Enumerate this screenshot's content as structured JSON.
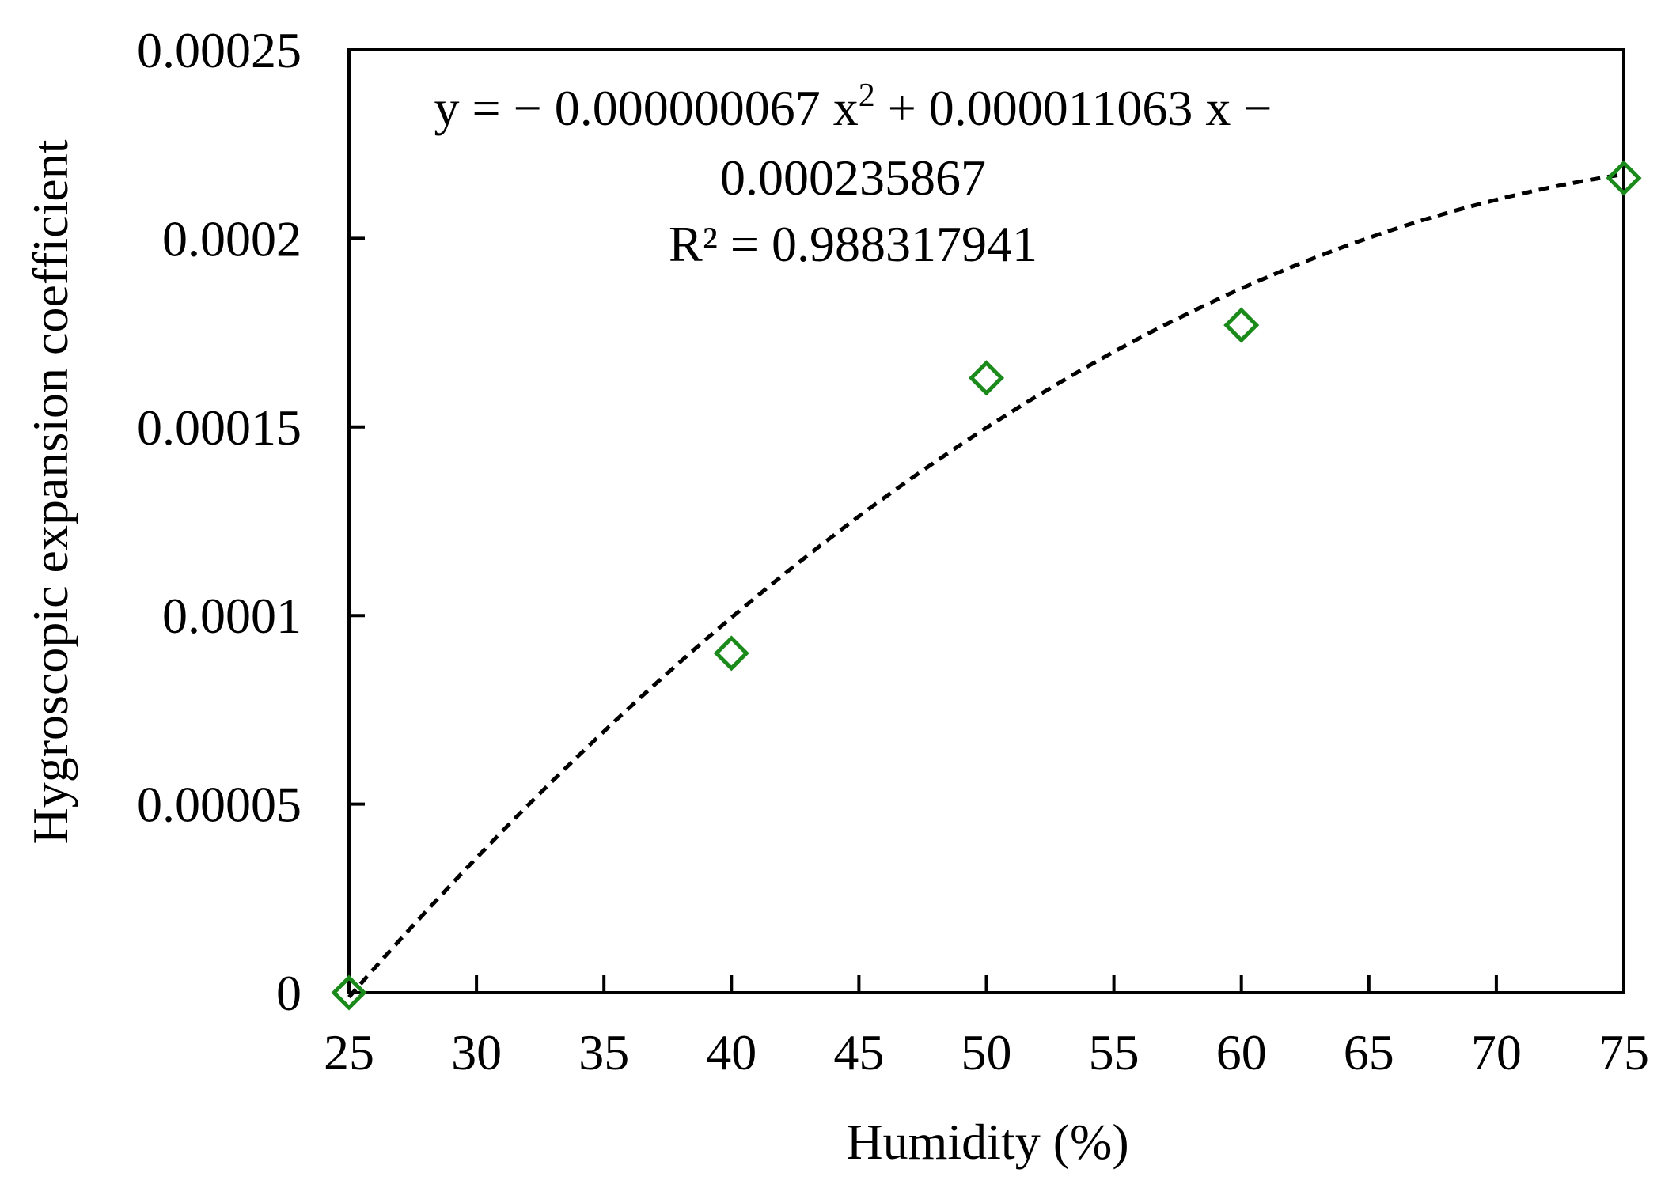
{
  "chart_data": {
    "type": "scatter",
    "title": "",
    "xlabel": "Humidity (%)",
    "ylabel": "Hygroscopic expansion coefficient",
    "xlim": [
      25,
      75
    ],
    "ylim": [
      0,
      0.00025
    ],
    "x_ticks": [
      "25",
      "30",
      "35",
      "40",
      "45",
      "50",
      "55",
      "60",
      "65",
      "70",
      "75"
    ],
    "y_ticks": [
      "0",
      "0.00005",
      "0.0001",
      "0.00015",
      "0.0002",
      "0.00025"
    ],
    "grid": false,
    "series": [
      {
        "marker": "diamond-open",
        "color": "#1a8a1a",
        "x": [
          25,
          40,
          50,
          60,
          75
        ],
        "y": [
          0,
          9e-05,
          0.000163,
          0.000177,
          0.000216
        ]
      }
    ],
    "trendline": {
      "type": "polynomial",
      "order": 2,
      "style": "dashed",
      "color": "#000000",
      "coefficients": [
        -6.7e-08,
        1.1063e-05,
        -0.000235867
      ]
    },
    "annotation": {
      "equation_line1_prefix": "y = − 0.000000067 x",
      "equation_line1_sup": "2",
      "equation_line1_suffix": " + 0.000011063 x −",
      "equation_line2": "0.000235867",
      "r_squared": "R² = 0.988317941"
    }
  }
}
